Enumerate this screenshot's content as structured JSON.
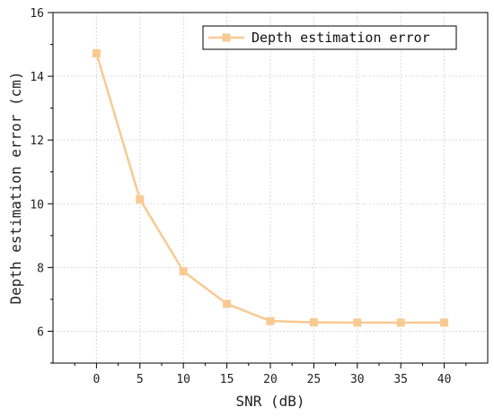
{
  "chart_data": {
    "type": "line",
    "x": [
      0,
      5,
      10,
      15,
      20,
      25,
      30,
      35,
      40
    ],
    "series": [
      {
        "name": "Depth estimation error",
        "values": [
          14.72,
          10.14,
          7.88,
          6.86,
          6.32,
          6.28,
          6.27,
          6.27,
          6.27
        ],
        "color": "#f9c992",
        "marker": "square"
      }
    ],
    "xlabel": "SNR (dB)",
    "ylabel": "Depth estimation error (cm)",
    "xlim": [
      -5,
      45
    ],
    "ylim": [
      5,
      16
    ],
    "xticks": [
      0,
      5,
      10,
      15,
      20,
      25,
      30,
      35,
      40
    ],
    "yticks": [
      6,
      8,
      10,
      12,
      14,
      16
    ],
    "grid": true,
    "legend_position": "top-right"
  }
}
